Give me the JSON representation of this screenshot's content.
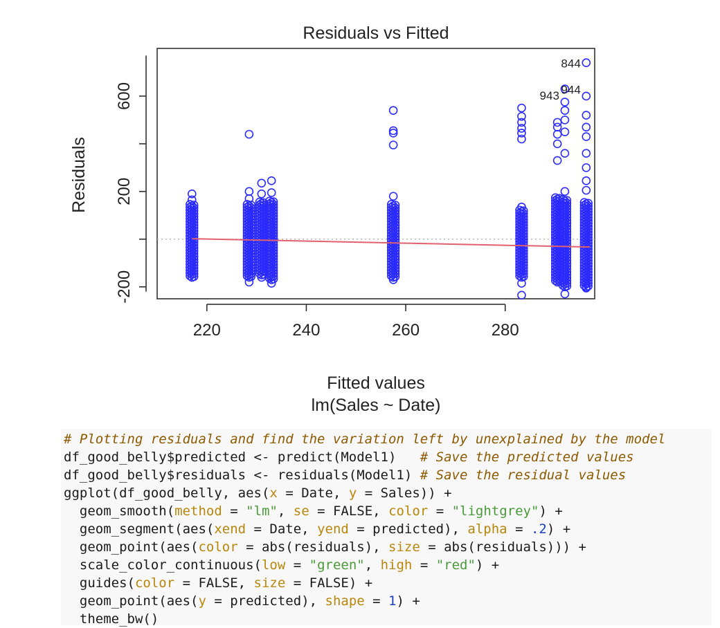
{
  "chart_data": {
    "type": "scatter",
    "title": "Residuals vs Fitted",
    "xlabel": "Fitted values",
    "sublabel": "lm(Sales ~ Date)",
    "ylabel": "Residuals",
    "xlim": [
      210,
      298
    ],
    "ylim": [
      -250,
      800
    ],
    "x_ticks": [
      220,
      240,
      260,
      280
    ],
    "y_ticks": [
      -200,
      200,
      600
    ],
    "y_minor_ticks": [
      0,
      400
    ],
    "point_color": "#2b2bff",
    "smooth_color": "#e06070",
    "reference_line_y": 0,
    "smooth_line": [
      {
        "x": 217,
        "y": 2
      },
      {
        "x": 297,
        "y": -33
      }
    ],
    "columns": [
      {
        "x": 217,
        "min": -160,
        "max": 145,
        "outliers": [
          190,
          165,
          -135,
          -160
        ]
      },
      {
        "x": 228.5,
        "min": -160,
        "max": 140,
        "outliers": [
          440,
          200,
          170,
          -180
        ]
      },
      {
        "x": 231,
        "min": -150,
        "max": 155,
        "outliers": [
          235,
          190,
          -160
        ]
      },
      {
        "x": 233,
        "min": -170,
        "max": 165,
        "outliers": [
          245,
          195,
          -185
        ]
      },
      {
        "x": 257.5,
        "min": -160,
        "max": 150,
        "outliers": [
          540,
          455,
          445,
          395,
          180,
          -160,
          -170
        ]
      },
      {
        "x": 283.3,
        "min": -160,
        "max": 120,
        "outliers": [
          550,
          515,
          490,
          465,
          445,
          420,
          135,
          -185,
          -235
        ]
      },
      {
        "x": 290.5,
        "min": -180,
        "max": 175,
        "outliers": [
          490,
          470,
          440,
          400,
          330
        ]
      },
      {
        "x": 292,
        "min": -200,
        "max": 160,
        "outliers": [
          630,
          575,
          540,
          500,
          450,
          360,
          200,
          -230
        ]
      },
      {
        "x": 296.3,
        "min": -200,
        "max": 150,
        "outliers": [
          740,
          600,
          520,
          470,
          430,
          360,
          300,
          245,
          205,
          -185,
          -205
        ]
      }
    ],
    "point_labels": [
      {
        "text": "844",
        "x": 296.3,
        "y": 740
      },
      {
        "text": "943",
        "x": 292,
        "y": 605
      },
      {
        "text": "944",
        "x": 296.3,
        "y": 630
      }
    ]
  },
  "code": {
    "lines": [
      [
        {
          "t": "# Plotting residuals and find the variation left by unexplained by the model",
          "c": "cm"
        }
      ],
      [
        {
          "t": "df_good_belly$predicted <- predict(Model1)   "
        },
        {
          "t": "# Save the predicted values",
          "c": "cm"
        }
      ],
      [
        {
          "t": "df_good_belly$residuals <- residuals(Model1) "
        },
        {
          "t": "# Save the residual values",
          "c": "cm"
        }
      ],
      [
        {
          "t": "ggplot(df_good_belly, aes("
        },
        {
          "t": "x",
          "c": "ar"
        },
        {
          "t": " = Date, "
        },
        {
          "t": "y",
          "c": "ar"
        },
        {
          "t": " = Sales)) +"
        }
      ],
      [
        {
          "t": "  geom_smooth("
        },
        {
          "t": "method",
          "c": "ar"
        },
        {
          "t": " = "
        },
        {
          "t": "\"lm\"",
          "c": "st"
        },
        {
          "t": ", "
        },
        {
          "t": "se",
          "c": "ar"
        },
        {
          "t": " = FALSE, "
        },
        {
          "t": "color",
          "c": "ar"
        },
        {
          "t": " = "
        },
        {
          "t": "\"lightgrey\"",
          "c": "st"
        },
        {
          "t": ") +"
        }
      ],
      [
        {
          "t": "  geom_segment(aes("
        },
        {
          "t": "xend",
          "c": "ar"
        },
        {
          "t": " = Date, "
        },
        {
          "t": "yend",
          "c": "ar"
        },
        {
          "t": " = predicted), "
        },
        {
          "t": "alpha",
          "c": "ar"
        },
        {
          "t": " = "
        },
        {
          "t": ".2",
          "c": "nu"
        },
        {
          "t": ") +"
        }
      ],
      [
        {
          "t": "  geom_point(aes("
        },
        {
          "t": "color",
          "c": "ar"
        },
        {
          "t": " = abs(residuals), "
        },
        {
          "t": "size",
          "c": "ar"
        },
        {
          "t": " = abs(residuals))) +"
        }
      ],
      [
        {
          "t": "  scale_color_continuous("
        },
        {
          "t": "low",
          "c": "ar"
        },
        {
          "t": " = "
        },
        {
          "t": "\"green\"",
          "c": "st"
        },
        {
          "t": ", "
        },
        {
          "t": "high",
          "c": "ar"
        },
        {
          "t": " = "
        },
        {
          "t": "\"red\"",
          "c": "st"
        },
        {
          "t": ") +"
        }
      ],
      [
        {
          "t": "  guides("
        },
        {
          "t": "color",
          "c": "ar"
        },
        {
          "t": " = FALSE, "
        },
        {
          "t": "size",
          "c": "ar"
        },
        {
          "t": " = FALSE) +"
        }
      ],
      [
        {
          "t": "  geom_point(aes("
        },
        {
          "t": "y",
          "c": "ar"
        },
        {
          "t": " = predicted), "
        },
        {
          "t": "shape",
          "c": "ar"
        },
        {
          "t": " = "
        },
        {
          "t": "1",
          "c": "nu"
        },
        {
          "t": ") +"
        }
      ],
      [
        {
          "t": "  theme_bw()"
        }
      ]
    ]
  }
}
